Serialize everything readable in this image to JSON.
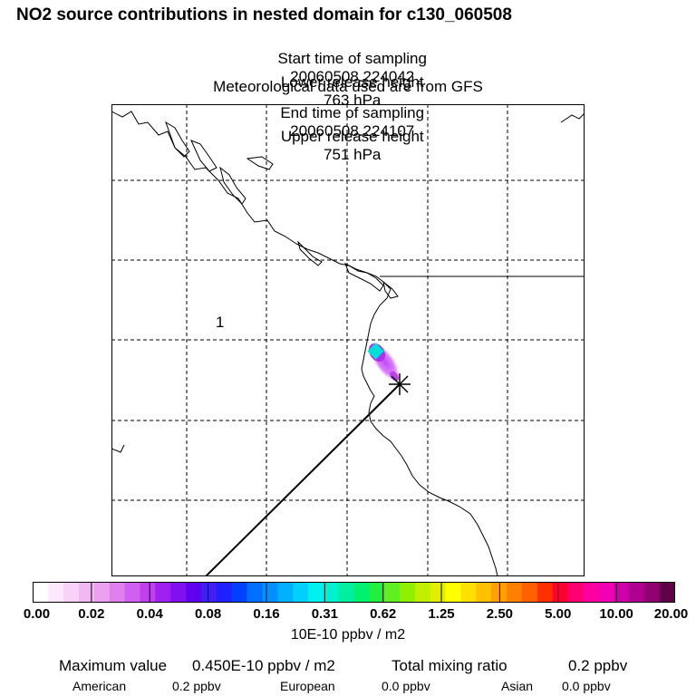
{
  "header": {
    "title": "NO2 source contributions in nested domain for c130_060508",
    "start_label": "Start time of sampling",
    "start_value": "20060508.224042",
    "end_label": "End time of sampling",
    "end_value": "20060508.224107",
    "lower_label": "Lower release height",
    "lower_value": "763 hPa",
    "upper_label": "Upper release height",
    "upper_value": "751 hPa",
    "met_text": "Meteorological data used are from GFS"
  },
  "map": {
    "domain_label": "1",
    "colors": {
      "frame": "#000000",
      "grid": "#000000",
      "plume_outer": "#e070ff",
      "plume_mid": "#b020f0",
      "plume_core": "#00e0e0",
      "marker": "#000000"
    }
  },
  "colorbar": {
    "colors": [
      "#ffffff",
      "#fde8fd",
      "#f8d2f8",
      "#f2b8f4",
      "#eca0f0",
      "#e080f0",
      "#d060f0",
      "#c040f0",
      "#a020f0",
      "#8010f0",
      "#6000f0",
      "#4020f0",
      "#2020ff",
      "#0040ff",
      "#0070ff",
      "#0090ff",
      "#00b0ff",
      "#00d0ff",
      "#00f0f0",
      "#00f0d0",
      "#00f0a0",
      "#00f070",
      "#20f040",
      "#60f020",
      "#90f000",
      "#c0f000",
      "#e0f000",
      "#ffff00",
      "#ffe000",
      "#ffc000",
      "#ffa000",
      "#ff8000",
      "#ff6000",
      "#ff3000",
      "#ff0030",
      "#ff0070",
      "#ff00a0",
      "#f000b0",
      "#d000a8",
      "#b00090",
      "#900070",
      "#600048"
    ],
    "tick_labels": [
      "0.00",
      "0.02",
      "0.04",
      "0.08",
      "0.16",
      "0.31",
      "0.62",
      "1.25",
      "2.50",
      "5.00",
      "10.00",
      "20.00"
    ],
    "units": "10E-10 ppbv / m2"
  },
  "stats": {
    "max_label": "Maximum value",
    "max_value": "0.450E-10 ppbv / m2",
    "total_label": "Total mixing ratio",
    "total_value": "0.2 ppbv",
    "american_label": "American",
    "american_value": "0.2 ppbv",
    "european_label": "European",
    "european_value": "0.0 ppbv",
    "asian_label": "Asian",
    "asian_value": "0.0 ppbv"
  }
}
